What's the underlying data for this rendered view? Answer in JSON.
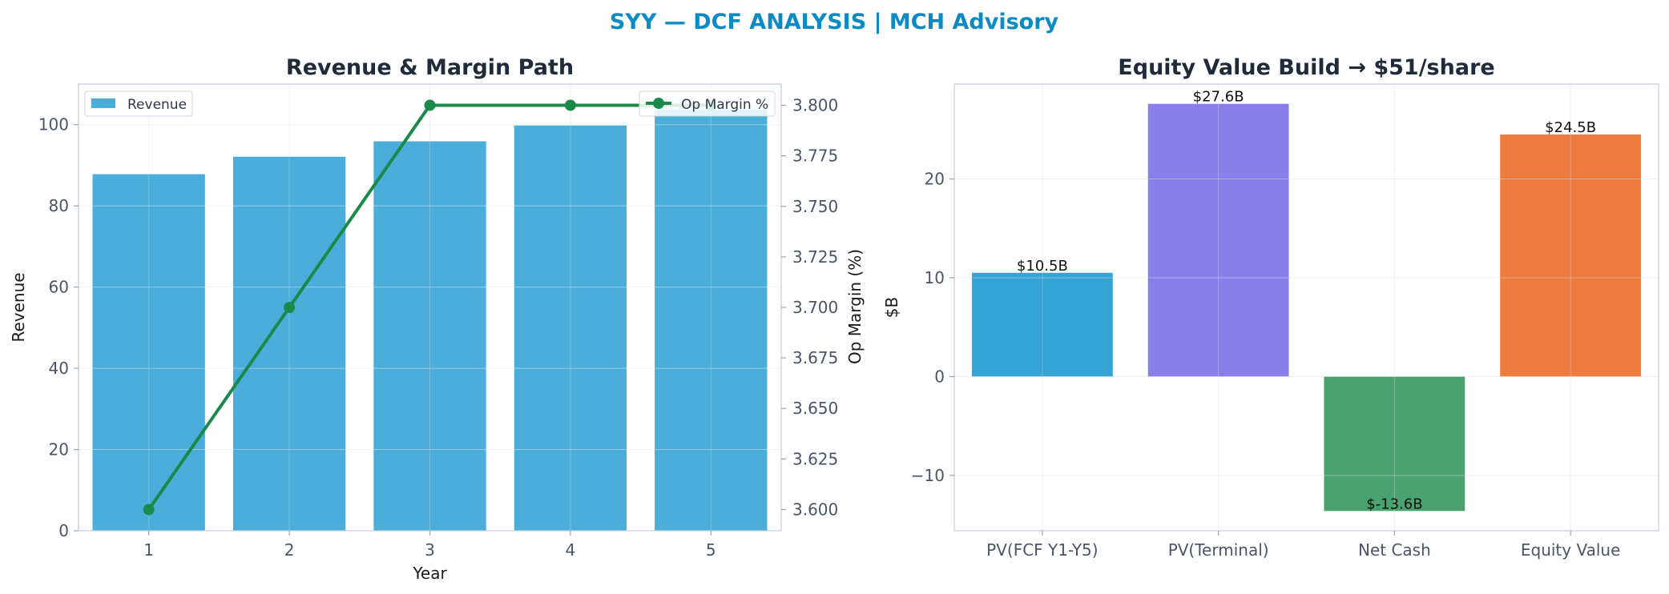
{
  "figure": {
    "title": "SYY — DCF ANALYSIS | MCH Advisory",
    "title_color": "#0a8bc4"
  },
  "chart_data": [
    {
      "type": "bar",
      "title": "Revenue & Margin Path",
      "xlabel": "Year",
      "ylabel": "Revenue",
      "y2label": "Op Margin (%)",
      "categories": [
        "1",
        "2",
        "3",
        "4",
        "5"
      ],
      "ylim": [
        0,
        110
      ],
      "yticks": [
        0,
        20,
        40,
        60,
        80,
        100
      ],
      "y2lim": [
        3.5895,
        3.8105
      ],
      "y2ticks": [
        "3.600",
        "3.625",
        "3.650",
        "3.675",
        "3.700",
        "3.725",
        "3.750",
        "3.775",
        "3.800"
      ],
      "grid": true,
      "series": [
        {
          "name": "Revenue",
          "kind": "bar",
          "axis": "left",
          "color": "#4badd9",
          "values": [
            87.8,
            92.1,
            95.9,
            99.8,
            103.8
          ]
        },
        {
          "name": "Op Margin %",
          "kind": "line",
          "axis": "right",
          "color": "#1a8a4a",
          "values": [
            3.6,
            3.7,
            3.8,
            3.8,
            3.8
          ]
        }
      ],
      "legend": {
        "Revenue": "upper-left",
        "Op Margin %": "upper-right"
      }
    },
    {
      "type": "bar",
      "title": "Equity Value Build → $51/share",
      "xlabel": "",
      "ylabel": "$B",
      "categories": [
        "PV(FCF Y1-Y5)",
        "PV(Terminal)",
        "Net Cash",
        "Equity Value"
      ],
      "values": [
        10.5,
        27.6,
        -13.6,
        24.5
      ],
      "labels": [
        "$10.5B",
        "$27.6B",
        "$-13.6B",
        "$24.5B"
      ],
      "colors": [
        "#35a3d4",
        "#8a7fea",
        "#4aa36f",
        "#ed7d3f"
      ],
      "ylim": [
        -15.6,
        29.6
      ],
      "yticks": [
        -10,
        0,
        10,
        20
      ],
      "grid": true
    }
  ]
}
